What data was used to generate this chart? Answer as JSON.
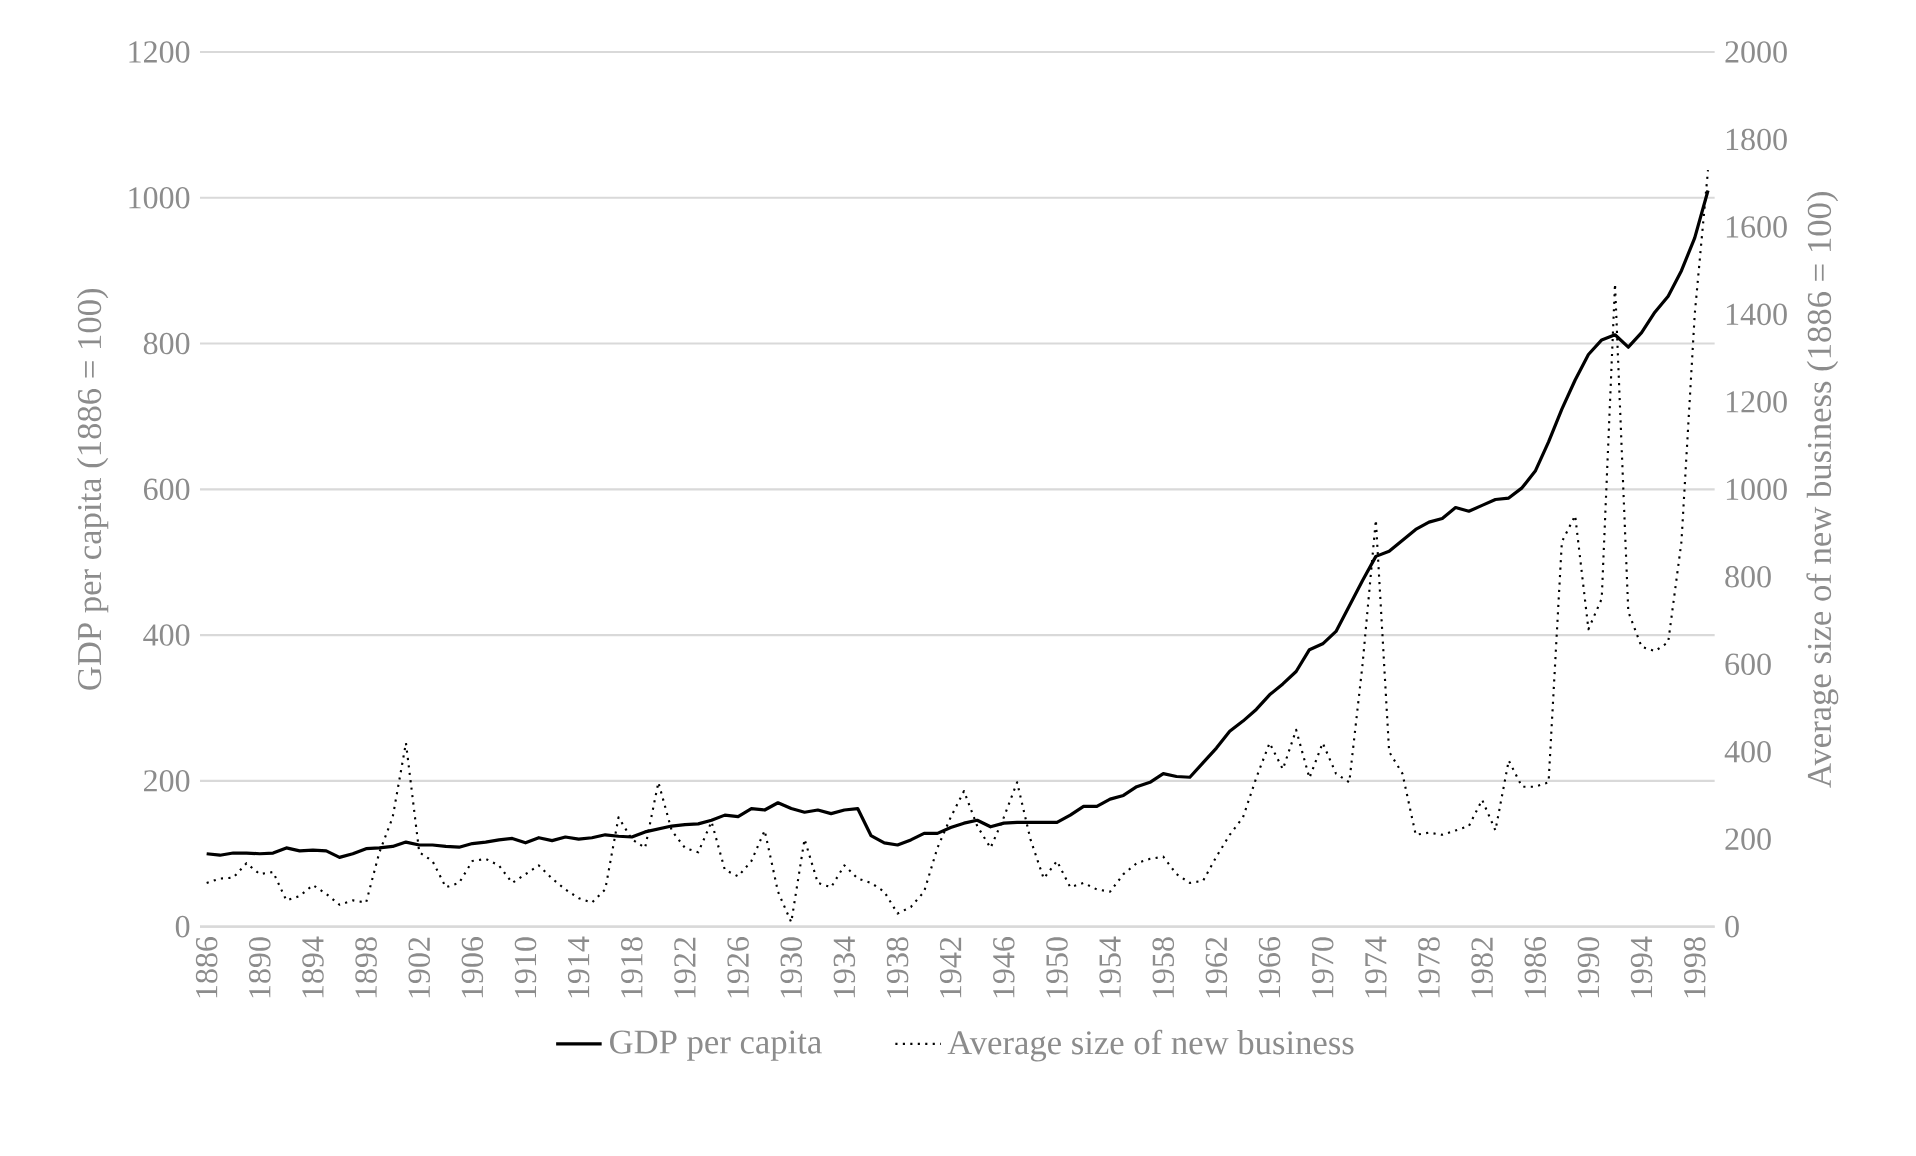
{
  "chart_data": {
    "type": "line",
    "ylabel": "GDP per capita (1886 = 100)",
    "y2label": "Average size of new business (1886 = 100)",
    "categories": [
      "1886",
      null,
      null,
      null,
      "1890",
      null,
      null,
      null,
      "1894",
      null,
      null,
      null,
      "1898",
      null,
      null,
      null,
      "1902",
      null,
      null,
      null,
      "1906",
      null,
      null,
      null,
      "1910",
      null,
      null,
      null,
      "1914",
      null,
      null,
      null,
      "1918",
      null,
      null,
      null,
      "1922",
      null,
      null,
      null,
      "1926",
      null,
      null,
      null,
      "1930",
      null,
      null,
      null,
      "1934",
      null,
      null,
      null,
      "1938",
      null,
      null,
      null,
      "1942",
      null,
      null,
      null,
      "1946",
      null,
      null,
      null,
      "1950",
      null,
      null,
      null,
      "1954",
      null,
      null,
      null,
      "1958",
      null,
      null,
      null,
      "1962",
      null,
      null,
      null,
      "1966",
      null,
      null,
      null,
      "1970",
      null,
      null,
      null,
      "1974",
      null,
      null,
      null,
      "1978",
      null,
      null,
      null,
      "1982",
      null,
      null,
      null,
      "1986",
      null,
      null,
      null,
      "1990",
      null,
      null,
      null,
      "1994",
      null,
      null,
      null,
      "1998",
      null
    ],
    "series": [
      {
        "name": "GDP per capita",
        "color": "#000000",
        "line_style": "solid",
        "values": [
          100,
          98,
          101,
          101,
          100,
          101,
          108,
          104,
          105,
          104,
          95,
          100,
          107,
          108,
          110,
          116,
          112,
          112,
          110,
          109,
          114,
          116,
          119,
          121,
          115,
          122,
          118,
          123,
          120,
          122,
          126,
          124,
          123,
          130,
          134,
          138,
          140,
          141,
          146,
          153,
          151,
          162,
          160,
          170,
          162,
          157,
          160,
          155,
          160,
          162,
          125,
          115,
          112,
          119,
          128,
          128,
          136,
          142,
          146,
          137,
          142,
          143,
          143,
          143,
          143,
          153,
          165,
          165,
          175,
          180,
          192,
          198,
          210,
          206,
          205,
          225,
          245,
          268,
          282,
          298,
          318,
          333,
          350,
          380,
          388,
          405,
          440,
          475,
          508,
          515,
          530,
          545,
          555,
          560,
          575,
          570,
          578,
          586,
          588,
          602,
          625,
          665,
          710,
          750,
          785,
          805,
          812,
          795,
          815,
          843,
          865,
          900,
          945,
          1010
        ]
      },
      {
        "name": "Average size of new business",
        "color": "#000000",
        "line_style": "dotted",
        "axis": "y2",
        "values": [
          100,
          110,
          112,
          145,
          120,
          125,
          60,
          70,
          95,
          75,
          50,
          60,
          55,
          170,
          250,
          420,
          170,
          150,
          90,
          100,
          150,
          155,
          140,
          100,
          120,
          140,
          110,
          85,
          65,
          55,
          85,
          250,
          200,
          180,
          330,
          220,
          180,
          170,
          240,
          130,
          115,
          150,
          220,
          80,
          10,
          200,
          100,
          90,
          140,
          110,
          100,
          80,
          30,
          45,
          80,
          180,
          250,
          310,
          230,
          180,
          250,
          330,
          200,
          110,
          150,
          90,
          100,
          85,
          80,
          120,
          145,
          155,
          160,
          120,
          100,
          105,
          160,
          210,
          250,
          340,
          420,
          360,
          450,
          340,
          420,
          350,
          330,
          600,
          930,
          400,
          350,
          210,
          215,
          210,
          220,
          230,
          290,
          220,
          380,
          320,
          320,
          330,
          880,
          940,
          680,
          750,
          1470,
          720,
          640,
          630,
          650,
          880,
          1400,
          1730
        ]
      }
    ],
    "ylim": [
      0,
      1200
    ],
    "yticks": [
      0,
      200,
      400,
      600,
      800,
      1000,
      1200
    ],
    "y2lim": [
      0,
      2000
    ],
    "y2ticks": [
      0,
      200,
      400,
      600,
      800,
      1000,
      1200,
      1400,
      1600,
      1800,
      2000
    ],
    "grid": "y",
    "legend": "bottom",
    "marker": "none"
  }
}
